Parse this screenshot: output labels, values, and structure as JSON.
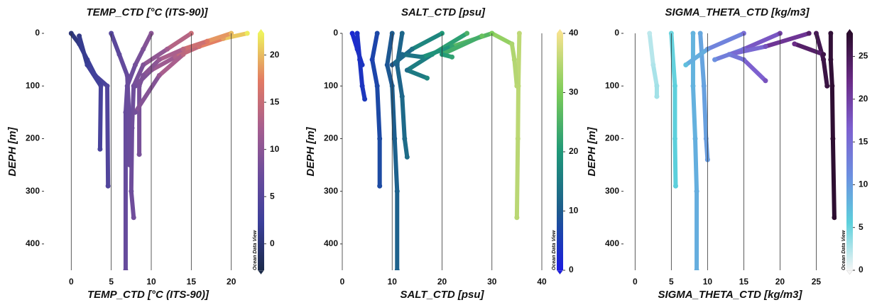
{
  "chart_data": [
    {
      "type": "scatter",
      "title": "TEMP_CTD [°C (ITS-90)]",
      "xlabel": "TEMP_CTD [°C (ITS-90)]",
      "ylabel": "DEPH [m]",
      "watermark": "Ocean Data View",
      "xlim": [
        -3.4,
        22.6
      ],
      "xticks": [
        0,
        5,
        10,
        15,
        20
      ],
      "ylim": [
        450,
        0
      ],
      "yticks": [
        0,
        100,
        200,
        300,
        400
      ],
      "grid": "x",
      "colorbar_lim": [
        -2.8,
        22.3
      ],
      "colorbar_ticks": [
        0,
        5,
        10,
        15,
        20
      ],
      "colormap": [
        "#1b2a4a",
        "#3b3f9a",
        "#6a4c9c",
        "#a65e8f",
        "#e27a63",
        "#eef25e"
      ],
      "series": [
        {
          "x": [
            22,
            19,
            16,
            13,
            10,
            8
          ],
          "y": [
            0,
            10,
            25,
            45,
            70,
            100
          ]
        },
        {
          "x": [
            20,
            17,
            14,
            11,
            9,
            8.5,
            8.5
          ],
          "y": [
            0,
            15,
            30,
            50,
            80,
            100,
            230
          ]
        },
        {
          "x": [
            15,
            12,
            9,
            7.8,
            7.6,
            7.5,
            7.8
          ],
          "y": [
            0,
            30,
            60,
            100,
            180,
            300,
            350
          ]
        },
        {
          "x": [
            10,
            9,
            8,
            7,
            6.8,
            6.8
          ],
          "y": [
            0,
            30,
            60,
            100,
            150,
            450
          ]
        },
        {
          "x": [
            5,
            6,
            7,
            7.2,
            7.3
          ],
          "y": [
            0,
            40,
            80,
            150,
            250
          ]
        },
        {
          "x": [
            0,
            1,
            2,
            3,
            4.5,
            4.6
          ],
          "y": [
            0,
            20,
            50,
            80,
            100,
            290
          ]
        },
        {
          "x": [
            1,
            2,
            3.7,
            3.6
          ],
          "y": [
            5,
            60,
            100,
            220
          ]
        },
        {
          "x": [
            14,
            11,
            8
          ],
          "y": [
            40,
            80,
            150
          ]
        }
      ]
    },
    {
      "type": "scatter",
      "title": "SALT_CTD [psu]",
      "xlabel": "SALT_CTD [psu]",
      "ylabel": "DEPH [m]",
      "watermark": "Ocean Data View",
      "xlim": [
        0,
        40
      ],
      "xticks": [
        0,
        10,
        20,
        30,
        40
      ],
      "ylim": [
        450,
        0
      ],
      "yticks": [
        0,
        100,
        200,
        300,
        400
      ],
      "grid": "x",
      "colorbar_lim": [
        0,
        40
      ],
      "colorbar_ticks": [
        0,
        10,
        20,
        30,
        40
      ],
      "colormap": [
        "#1b1be0",
        "#1d5b8e",
        "#1f9878",
        "#7ccc58",
        "#f5e28e"
      ],
      "series": [
        {
          "x": [
            35.5,
            35.3,
            35.2,
            35
          ],
          "y": [
            0,
            100,
            200,
            350
          ]
        },
        {
          "x": [
            30,
            34,
            34.5,
            35
          ],
          "y": [
            0,
            20,
            50,
            100
          ]
        },
        {
          "x": [
            3,
            3.5,
            4,
            4.5
          ],
          "y": [
            0,
            50,
            100,
            125
          ]
        },
        {
          "x": [
            2,
            3,
            4
          ],
          "y": [
            0,
            30,
            60
          ]
        },
        {
          "x": [
            7,
            6,
            7,
            7.5,
            7.5
          ],
          "y": [
            0,
            50,
            100,
            200,
            290
          ]
        },
        {
          "x": [
            10,
            9,
            10,
            10.5,
            11,
            11
          ],
          "y": [
            0,
            60,
            100,
            200,
            300,
            450
          ]
        },
        {
          "x": [
            12,
            11,
            12,
            12.5,
            13
          ],
          "y": [
            0,
            60,
            120,
            200,
            235
          ]
        },
        {
          "x": [
            20,
            14,
            10
          ],
          "y": [
            0,
            30,
            60
          ]
        },
        {
          "x": [
            25,
            18,
            13,
            17
          ],
          "y": [
            0,
            40,
            70,
            85
          ]
        },
        {
          "x": [
            30,
            22,
            16,
            12
          ],
          "y": [
            0,
            25,
            45,
            40
          ]
        },
        {
          "x": [
            28,
            20,
            22
          ],
          "y": [
            5,
            40,
            45
          ]
        }
      ]
    },
    {
      "type": "scatter",
      "title": "SIGMA_THETA_CTD [kg/m3]",
      "xlabel": "SIGMA_THETA_CTD [kg/m3]",
      "ylabel": "DEPH [m]",
      "watermark": "Ocean Data View",
      "xlim": [
        -1.6,
        27.8
      ],
      "xticks": [
        0,
        5,
        10,
        15,
        20,
        25
      ],
      "ylim": [
        450,
        0
      ],
      "yticks": [
        0,
        100,
        200,
        300,
        400
      ],
      "grid": "x",
      "colorbar_lim": [
        0,
        27.7
      ],
      "colorbar_ticks": [
        0,
        5,
        10,
        15,
        20,
        25
      ],
      "colormap": [
        "#f5f5f5",
        "#5cd0dc",
        "#6c8fe0",
        "#7d5fcf",
        "#6a2a86",
        "#2a0c2c"
      ],
      "series": [
        {
          "x": [
            27,
            27,
            27.2,
            27.3,
            27.5
          ],
          "y": [
            0,
            50,
            100,
            200,
            350
          ]
        },
        {
          "x": [
            25,
            26,
            26.5
          ],
          "y": [
            0,
            50,
            100
          ]
        },
        {
          "x": [
            2,
            2.5,
            3,
            3
          ],
          "y": [
            0,
            60,
            100,
            120
          ]
        },
        {
          "x": [
            5,
            5.5,
            5.5,
            5.6
          ],
          "y": [
            0,
            100,
            200,
            290
          ]
        },
        {
          "x": [
            8,
            8,
            8.3,
            8.5,
            8.5
          ],
          "y": [
            0,
            100,
            200,
            300,
            450
          ]
        },
        {
          "x": [
            9,
            9.5,
            9.8,
            10
          ],
          "y": [
            0,
            100,
            200,
            240
          ]
        },
        {
          "x": [
            15,
            10,
            7
          ],
          "y": [
            0,
            30,
            60
          ]
        },
        {
          "x": [
            20,
            15,
            11
          ],
          "y": [
            0,
            30,
            50
          ]
        },
        {
          "x": [
            24,
            18,
            13,
            15,
            18
          ],
          "y": [
            0,
            25,
            40,
            50,
            90
          ]
        },
        {
          "x": [
            22,
            26
          ],
          "y": [
            20,
            40
          ]
        }
      ]
    }
  ]
}
